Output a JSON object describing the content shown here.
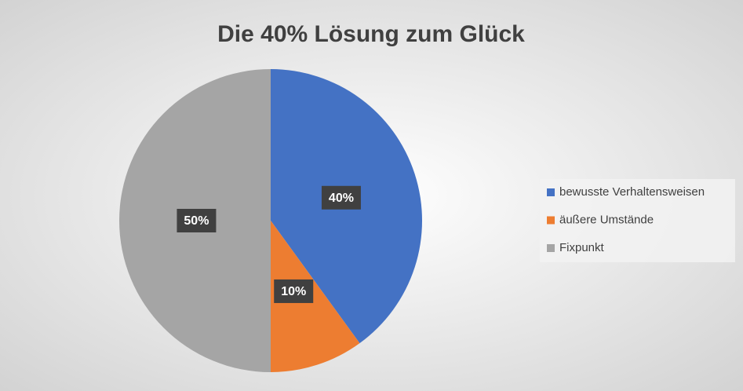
{
  "chart_data": {
    "type": "pie",
    "title": "Die 40% Lösung zum Glück",
    "categories": [
      "bewusste Verhaltensweisen",
      "äußere Umstände",
      "Fixpunkt"
    ],
    "values": [
      40,
      10,
      50
    ],
    "value_labels": [
      "40%",
      "10%",
      "50%"
    ],
    "colors": [
      "#4472c4",
      "#ed7d31",
      "#a5a5a5"
    ],
    "legend": "right"
  }
}
